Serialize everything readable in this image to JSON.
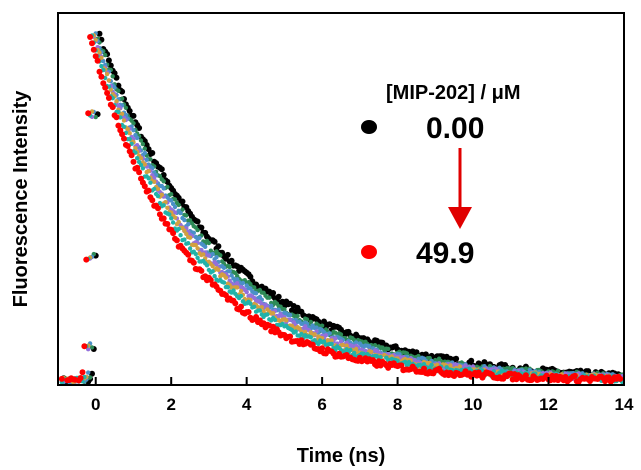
{
  "chart_data": {
    "type": "scatter",
    "title": "",
    "xlabel": "Time (ns)",
    "ylabel": "Fluorescence Intensity",
    "xlim": [
      -1,
      14
    ],
    "ylim": [
      0,
      1.08
    ],
    "xticks": [
      "0",
      "2",
      "4",
      "6",
      "8",
      "10",
      "12",
      "14"
    ],
    "xtick_values": [
      0,
      2,
      4,
      6,
      8,
      10,
      12,
      14
    ],
    "grid": false,
    "legend": {
      "title": "[MIP-202] / μM",
      "placement": "top-right",
      "entries": [
        {
          "label": "0.00",
          "color": "#000000"
        },
        {
          "label": "49.9",
          "color": "#ff0000"
        }
      ],
      "arrow_color": "#e00000"
    },
    "series": [
      {
        "label": "0.00",
        "color": "#000000",
        "peak_time": 0.1,
        "tau": 3.3
      },
      {
        "color": "#2e8b57",
        "peak_time": 0.05,
        "tau": 3.15
      },
      {
        "color": "#4a90c8",
        "peak_time": 0.0,
        "tau": 3.05
      },
      {
        "color": "#9370db",
        "peak_time": -0.05,
        "tau": 2.95
      },
      {
        "color": "#d2a040",
        "peak_time": -0.05,
        "tau": 2.85
      },
      {
        "color": "#20b2aa",
        "peak_time": -0.1,
        "tau": 2.75
      },
      {
        "label": "49.9",
        "color": "#ff0000",
        "peak_time": -0.15,
        "tau": 2.55
      }
    ]
  }
}
